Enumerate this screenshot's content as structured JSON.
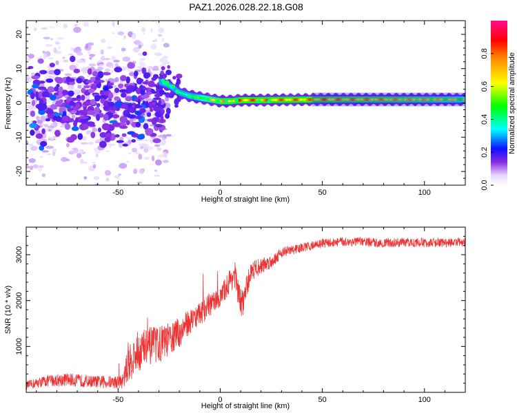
{
  "title": "PAZ1.2026.028.22.18.G08",
  "chart_data": [
    {
      "type": "heatmap",
      "xlabel": "Height of straight line (km)",
      "ylabel": "Frequency (Hz)",
      "xlim": [
        -95,
        120
      ],
      "ylim": [
        -24,
        24
      ],
      "xticks": [
        -50,
        0,
        50,
        100
      ],
      "yticks": [
        -20,
        -10,
        0,
        10,
        20
      ],
      "colorbar": {
        "label": "Normalized spectral amplitude",
        "range": [
          0,
          1
        ],
        "ticks": [
          "0.0",
          "0.2",
          "0.4",
          "0.6",
          "0.8"
        ]
      },
      "ridge": {
        "x": [
          -29,
          -25,
          -20,
          -15,
          -10,
          -5,
          0,
          5,
          10,
          20,
          30,
          50,
          80,
          100,
          120
        ],
        "freq": [
          6,
          5,
          3,
          2,
          1.5,
          1,
          0.5,
          0.5,
          0.8,
          0.8,
          0.9,
          1.0,
          1.0,
          1.0,
          1.0
        ],
        "amplitude": [
          0.4,
          0.45,
          0.4,
          0.5,
          0.6,
          0.7,
          0.8,
          0.8,
          0.9,
          0.85,
          0.85,
          0.85,
          0.8,
          0.75,
          0.65
        ]
      }
    },
    {
      "type": "line",
      "xlabel": "Height of straight line (km)",
      "ylabel": "SNR (10 * v/v)",
      "xlim": [
        -95,
        120
      ],
      "ylim": [
        0,
        3600
      ],
      "xticks": [
        -50,
        0,
        50,
        100
      ],
      "yticks": [
        1000,
        2000,
        3000
      ],
      "series": [
        {
          "name": "SNR",
          "color": "#ee3333",
          "x": [
            -95,
            -85,
            -75,
            -65,
            -55,
            -48,
            -45,
            -40,
            -35,
            -30,
            -25,
            -20,
            -15,
            -10,
            -5,
            0,
            3,
            7,
            10,
            12,
            15,
            20,
            25,
            30,
            35,
            40,
            50,
            60,
            70,
            80,
            90,
            100,
            110,
            120
          ],
          "y": [
            150,
            250,
            280,
            240,
            220,
            230,
            600,
            900,
            1000,
            1050,
            1150,
            1300,
            1550,
            1700,
            1900,
            2050,
            2300,
            2600,
            1900,
            2100,
            2650,
            2750,
            2850,
            3050,
            3100,
            3150,
            3250,
            3280,
            3280,
            3250,
            3270,
            3260,
            3260,
            3270
          ],
          "noise": [
            90,
            130,
            150,
            130,
            140,
            150,
            380,
            470,
            420,
            400,
            360,
            330,
            280,
            260,
            250,
            220,
            260,
            300,
            360,
            300,
            220,
            180,
            150,
            120,
            110,
            100,
            100,
            100,
            100,
            100,
            100,
            100,
            100,
            100
          ]
        }
      ]
    }
  ]
}
